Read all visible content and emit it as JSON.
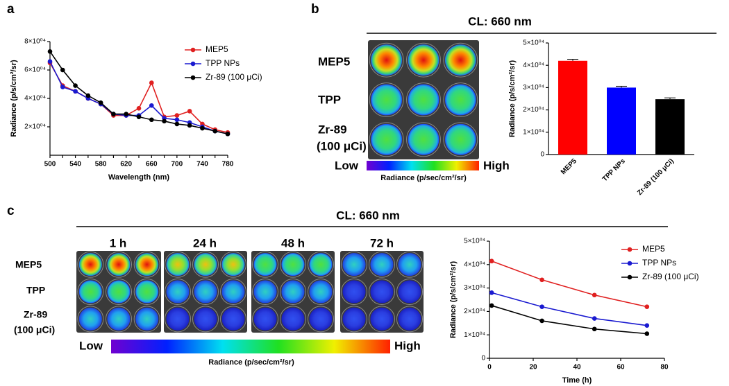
{
  "figure": {
    "panel_a": "a",
    "panel_b": "b",
    "panel_c": "c",
    "b_header": "CL: 660 nm",
    "c_header": "CL: 660 nm",
    "b_rows": [
      "MEP5",
      "TPP",
      "Zr-89",
      "(100 μCi)"
    ],
    "c_rows": [
      "MEP5",
      "TPP",
      "Zr-89",
      "(100 μCi)"
    ],
    "c_times": [
      "1 h",
      "24 h",
      "48 h",
      "72 h"
    ],
    "b_low": "Low",
    "b_high": "High",
    "b_scale_label": "Radiance (p/sec/cm²/sr)",
    "c_low": "Low",
    "c_high": "High",
    "c_scale_label": "Radiance (p/sec/cm²/sr)"
  },
  "chart_data": [
    {
      "type": "line",
      "xlabel": "Wavelength (nm)",
      "ylabel": "Radiance (p/s/cm²/sr)",
      "x": [
        500,
        520,
        540,
        560,
        580,
        600,
        620,
        640,
        660,
        680,
        700,
        720,
        740,
        760,
        780
      ],
      "xlim": [
        500,
        780
      ],
      "xticks": [
        500,
        520,
        540,
        560,
        580,
        600,
        620,
        640,
        660,
        680,
        700,
        720,
        740,
        760,
        780
      ],
      "ylim": [
        0,
        80000
      ],
      "yticks": [
        {
          "value": 20000,
          "label": "2×10⁰⁴"
        },
        {
          "value": 40000,
          "label": "4×10⁰⁴"
        },
        {
          "value": 60000,
          "label": "6×10⁰⁴"
        },
        {
          "value": 80000,
          "label": "8×10⁰⁴"
        }
      ],
      "legend": "upper right",
      "series": [
        {
          "name": "MEP5",
          "color": "#e02020",
          "values": [
            65000,
            49000,
            45000,
            40000,
            36000,
            28000,
            28000,
            33000,
            51000,
            27000,
            28000,
            31000,
            22000,
            18000,
            16000
          ]
        },
        {
          "name": "TPP NPs",
          "color": "#1a1ad0",
          "values": [
            66000,
            48000,
            45000,
            40000,
            36000,
            29000,
            28000,
            28000,
            35000,
            26000,
            25000,
            23000,
            20000,
            17000,
            15000
          ]
        },
        {
          "name": "Zr-89 (100 μCi)",
          "color": "#000000",
          "values": [
            73000,
            60000,
            49000,
            42000,
            37000,
            29000,
            29000,
            27000,
            25000,
            24000,
            22000,
            21000,
            19000,
            17000,
            15000
          ]
        }
      ]
    },
    {
      "type": "bar",
      "ylabel": "Radiance (p/s/cm²/sr)",
      "categories": [
        "MEP5",
        "TPP NPs",
        "Zr-89 (100 μCi)"
      ],
      "values": [
        42000,
        30000,
        24800
      ],
      "errors": [
        700,
        600,
        600
      ],
      "colors": [
        "#ff0000",
        "#0000ff",
        "#000000"
      ],
      "ylim": [
        0,
        50000
      ],
      "yticks": [
        0,
        {
          "value": 10000,
          "label": "1×10⁰⁴"
        },
        {
          "value": 20000,
          "label": "2×10⁰⁴"
        },
        {
          "value": 30000,
          "label": "3×10⁰⁴"
        },
        {
          "value": 40000,
          "label": "4×10⁰⁴"
        },
        {
          "value": 50000,
          "label": "5×10⁰⁴"
        }
      ]
    },
    {
      "type": "line",
      "xlabel": "Time (h)",
      "ylabel": "Radiance (p/s/cm²/sr)",
      "x": [
        1,
        24,
        48,
        72
      ],
      "xlim": [
        0,
        80
      ],
      "xticks": [
        0,
        20,
        40,
        60,
        80
      ],
      "ylim": [
        0,
        50000
      ],
      "yticks": [
        0,
        {
          "value": 10000,
          "label": "1×10⁰⁴"
        },
        {
          "value": 20000,
          "label": "2×10⁰⁴"
        },
        {
          "value": 30000,
          "label": "3×10⁰⁴"
        },
        {
          "value": 40000,
          "label": "4×10⁰⁴"
        },
        {
          "value": 50000,
          "label": "5×10⁰⁴"
        }
      ],
      "legend": "upper right",
      "series": [
        {
          "name": "MEP5",
          "color": "#e02020",
          "values": [
            41500,
            33500,
            27000,
            22000
          ]
        },
        {
          "name": "TPP NPs",
          "color": "#1a1ad0",
          "values": [
            28000,
            22000,
            17000,
            14000
          ]
        },
        {
          "name": "Zr-89 (100 μCi)",
          "color": "#000000",
          "values": [
            22500,
            16000,
            12500,
            10500
          ]
        }
      ]
    }
  ]
}
